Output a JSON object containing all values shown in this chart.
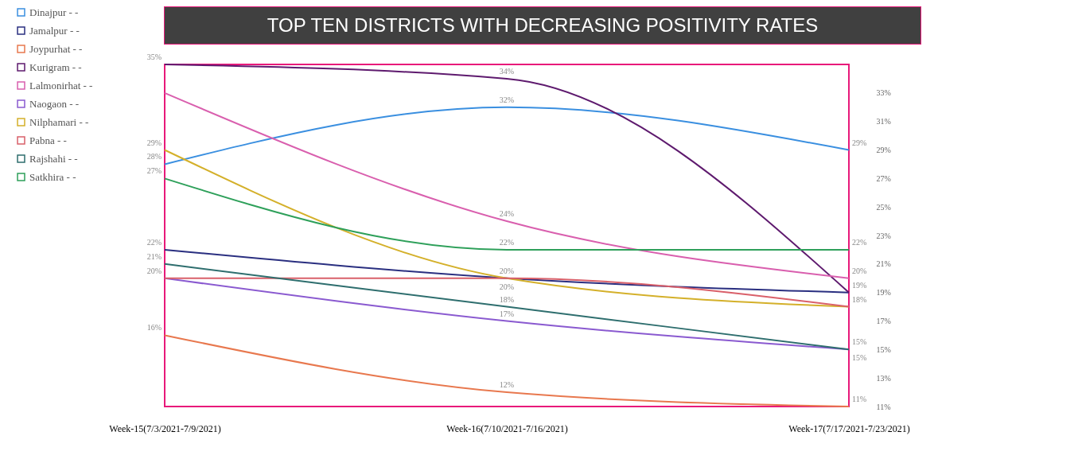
{
  "chart_data": {
    "type": "line",
    "title": "TOP TEN DISTRICTS WITH DECREASING POSITIVITY RATES",
    "categories": [
      "Week-15(7/3/2021-7/9/2021)",
      "Week-16(7/10/2021-7/16/2021)",
      "Week-17(7/17/2021-7/23/2021)"
    ],
    "series": [
      {
        "name": "Dinajpur - -",
        "color": "#3a8fe0",
        "values": [
          28,
          32,
          29
        ],
        "value_labels": [
          "28%",
          "32%",
          "29%"
        ]
      },
      {
        "name": "Jamalpur - -",
        "color": "#2a2f80",
        "values": [
          22,
          20,
          19
        ],
        "value_labels": [
          "22%",
          null,
          "19%"
        ]
      },
      {
        "name": "Joypurhat - -",
        "color": "#e8784e",
        "values": [
          16,
          12,
          11
        ],
        "value_labels": [
          "16%",
          "12%",
          "11%"
        ]
      },
      {
        "name": "Kurigram - -",
        "color": "#5e1a6e",
        "values": [
          35,
          34,
          19
        ],
        "value_labels": [
          "35%",
          "34%",
          null
        ]
      },
      {
        "name": "Lalmonirhat - -",
        "color": "#d95fae",
        "values": [
          33,
          24,
          20
        ],
        "value_labels": [
          null,
          "24%",
          "20%"
        ]
      },
      {
        "name": "Naogaon - -",
        "color": "#8a5ad0",
        "values": [
          20,
          17,
          15
        ],
        "value_labels": [
          "20%",
          "17%",
          "15%"
        ]
      },
      {
        "name": "Nilphamari - -",
        "color": "#d4b02a",
        "values": [
          29,
          20,
          18
        ],
        "value_labels": [
          "29%",
          "20%",
          "18%"
        ]
      },
      {
        "name": "Pabna - -",
        "color": "#d9606a",
        "values": [
          20,
          20,
          18
        ],
        "value_labels": [
          null,
          "20%",
          null
        ]
      },
      {
        "name": "Rajshahi - -",
        "color": "#2e6e6e",
        "values": [
          21,
          18,
          15
        ],
        "value_labels": [
          "21%",
          "18%",
          "15%"
        ]
      },
      {
        "name": "Satkhira - -",
        "color": "#2ea05a",
        "values": [
          27,
          22,
          22
        ],
        "value_labels": [
          "27%",
          "22%",
          "22%"
        ]
      }
    ],
    "ylim": [
      11,
      35
    ],
    "yticks": [
      {
        "value": 11,
        "label": "11%"
      },
      {
        "value": 13,
        "label": "13%"
      },
      {
        "value": 15,
        "label": "15%"
      },
      {
        "value": 17,
        "label": "17%"
      },
      {
        "value": 19,
        "label": "19%"
      },
      {
        "value": 21,
        "label": "21%"
      },
      {
        "value": 23,
        "label": "23%"
      },
      {
        "value": 25,
        "label": "25%"
      },
      {
        "value": 27,
        "label": "27%"
      },
      {
        "value": 29,
        "label": "29%"
      },
      {
        "value": 31,
        "label": "31%"
      },
      {
        "value": 33,
        "label": "33%"
      }
    ],
    "grid": false,
    "legend": "left",
    "marker": "none",
    "line_style": "solid"
  }
}
